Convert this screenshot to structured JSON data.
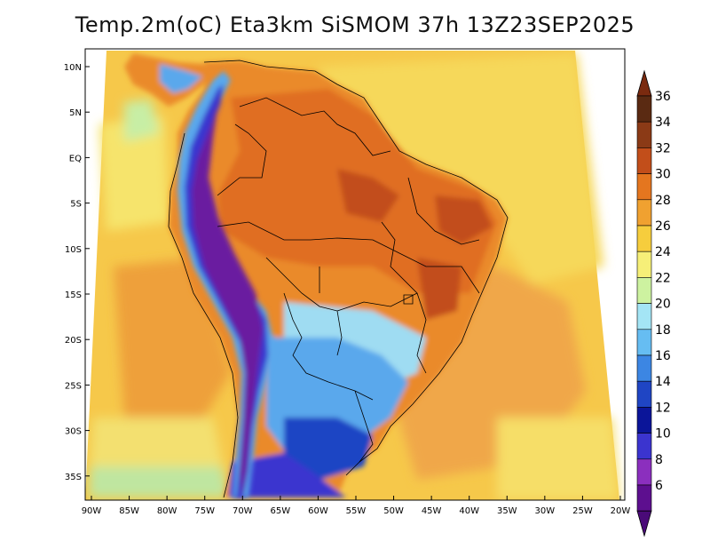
{
  "title": "Temp.2m(oC) Eta3km SiSMOM 37h 13Z23SEP2025",
  "map": {
    "lat_labels": [
      "10N",
      "5N",
      "EQ",
      "5S",
      "10S",
      "15S",
      "20S",
      "25S",
      "30S",
      "35S"
    ],
    "lon_labels": [
      "90W",
      "85W",
      "80W",
      "75W",
      "70W",
      "65W",
      "60W",
      "55W",
      "50W",
      "45W",
      "40W",
      "35W",
      "30W",
      "25W",
      "20W"
    ]
  },
  "colorbar": {
    "labels": [
      "36",
      "34",
      "32",
      "30",
      "28",
      "26",
      "24",
      "22",
      "20",
      "18",
      "16",
      "14",
      "12",
      "10",
      "8",
      "6"
    ],
    "colors": [
      "#5a2a12",
      "#8b3a16",
      "#c24e1a",
      "#e4761f",
      "#f0a130",
      "#f6cd3d",
      "#f6ef78",
      "#cdf2a0",
      "#a4e5f5",
      "#66bdf2",
      "#3c86e3",
      "#1f45c4",
      "#0b1599",
      "#3b34cf",
      "#8b2fbe",
      "#5d0f8f"
    ],
    "tip_top": "#7a2a0f",
    "tip_bottom": "#4a0a78"
  },
  "colors": {
    "ocean_warm": "#f6c84a",
    "ocean_hot": "#efa33a",
    "land_hot": "#e77a24",
    "land_hotter": "#cf5c1c",
    "andes_cold": "#6a1aa0",
    "south_cool": "#3f7fd8"
  }
}
